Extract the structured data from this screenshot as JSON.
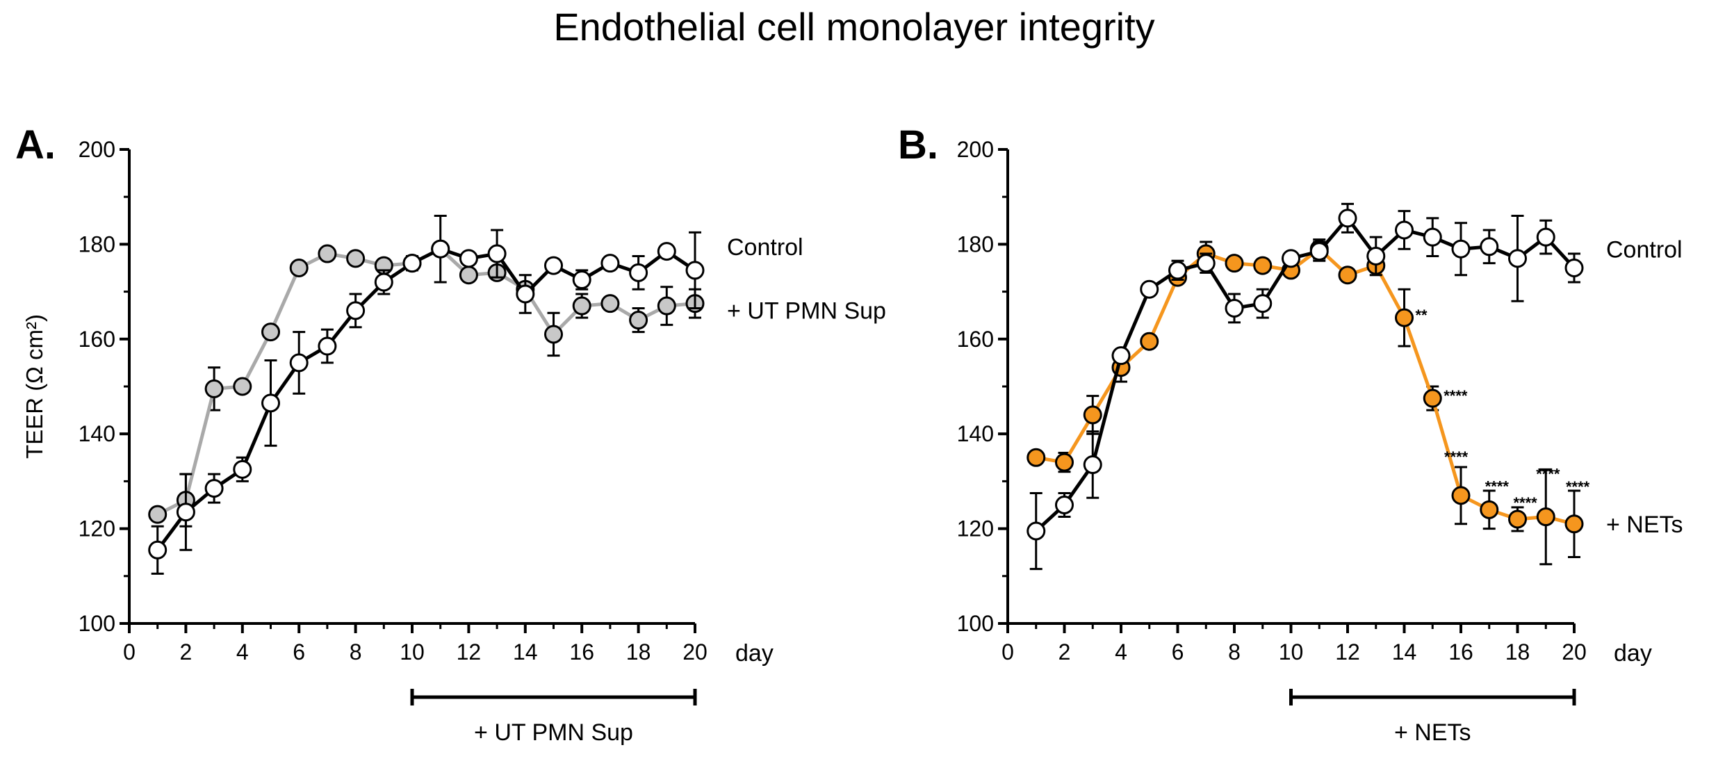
{
  "figure_title": "Endothelial cell monolayer integrity",
  "colors": {
    "control_fill": "#ffffff",
    "ut_pmn_fill": "#c8c8c8",
    "ut_pmn_line": "#a9a9a9",
    "nets_fill": "#f5961e",
    "nets_line": "#f5961e",
    "control_line": "#000000"
  },
  "chart_data": [
    {
      "panel": "A.",
      "type": "line",
      "ylabel": "TEER (Ω cm²)",
      "x_unit_label": "day",
      "xlim": [
        0,
        20
      ],
      "ylim": [
        100,
        200
      ],
      "xticks": [
        0,
        2,
        4,
        6,
        8,
        10,
        12,
        14,
        16,
        18,
        20
      ],
      "yticks": [
        100,
        120,
        140,
        160,
        180,
        200
      ],
      "grid": false,
      "treatment_bar": {
        "label": "+ UT PMN Sup",
        "from": 10,
        "to": 20
      },
      "series": [
        {
          "name": "+ UT PMN Sup",
          "style": "gray",
          "x": [
            1,
            2,
            3,
            4,
            5,
            6,
            7,
            8,
            9,
            10,
            11,
            12,
            13,
            14,
            15,
            16,
            17,
            18,
            19,
            20
          ],
          "y": [
            123,
            126,
            149.5,
            150,
            161.5,
            175,
            178,
            177,
            175.5,
            176,
            179,
            173.5,
            174,
            170.5,
            161,
            167,
            167.5,
            164,
            167,
            167.5
          ],
          "err": [
            0,
            5.5,
            4.5,
            0,
            0,
            0,
            0,
            0,
            0,
            0,
            0,
            0,
            0,
            0,
            4.5,
            2.5,
            0,
            2.5,
            4,
            3
          ]
        },
        {
          "name": "Control",
          "style": "black",
          "x": [
            1,
            2,
            3,
            4,
            5,
            6,
            7,
            8,
            9,
            10,
            11,
            12,
            13,
            14,
            15,
            16,
            17,
            18,
            19,
            20
          ],
          "y": [
            115.5,
            123.5,
            128.5,
            132.5,
            146.5,
            155,
            158.5,
            166,
            172,
            176,
            179,
            177,
            178,
            169.5,
            175.5,
            172.5,
            176,
            174,
            178.5,
            174.5
          ],
          "err": [
            5,
            8,
            3,
            2.5,
            9,
            6.5,
            3.5,
            3.5,
            2.5,
            1.5,
            7,
            0,
            5,
            4,
            0,
            2,
            0,
            3.5,
            0,
            8
          ]
        }
      ],
      "significance": []
    },
    {
      "panel": "B.",
      "type": "line",
      "ylabel": "",
      "x_unit_label": "day",
      "xlim": [
        0,
        20
      ],
      "ylim": [
        100,
        200
      ],
      "xticks": [
        0,
        2,
        4,
        6,
        8,
        10,
        12,
        14,
        16,
        18,
        20
      ],
      "yticks": [
        100,
        120,
        140,
        160,
        180,
        200
      ],
      "grid": false,
      "treatment_bar": {
        "label": "+ NETs",
        "from": 10,
        "to": 20
      },
      "series": [
        {
          "name": "+ NETs",
          "style": "orange",
          "x": [
            1,
            2,
            3,
            4,
            5,
            6,
            7,
            8,
            9,
            10,
            11,
            12,
            13,
            14,
            15,
            16,
            17,
            18,
            19,
            20
          ],
          "y": [
            135,
            134,
            144,
            154,
            159.5,
            173,
            178,
            176,
            175.5,
            174.5,
            179,
            173.5,
            175.5,
            164.5,
            147.5,
            127,
            124,
            122,
            122.5,
            121
          ],
          "err": [
            0,
            2,
            4,
            3,
            0,
            0,
            2.5,
            0,
            0,
            0,
            2,
            0,
            0,
            6,
            2.5,
            6,
            4,
            2.5,
            10,
            7
          ]
        },
        {
          "name": "Control",
          "style": "black",
          "x": [
            1,
            2,
            3,
            4,
            5,
            6,
            7,
            8,
            9,
            10,
            11,
            12,
            13,
            14,
            15,
            16,
            17,
            18,
            19,
            20
          ],
          "y": [
            119.5,
            125,
            133.5,
            156.5,
            170.5,
            174.5,
            176,
            166.5,
            167.5,
            177,
            178.5,
            185.5,
            177.5,
            183,
            181.5,
            179,
            179.5,
            177,
            181.5,
            175
          ],
          "err": [
            8,
            2.5,
            7,
            0,
            0,
            2,
            2,
            3,
            3,
            0,
            2,
            3,
            4,
            4,
            4,
            5.5,
            3.5,
            9,
            3.5,
            3
          ]
        }
      ],
      "significance": [
        {
          "x": 14,
          "y": 164.5,
          "label": "**"
        },
        {
          "x": 15,
          "y": 147.5,
          "label": "****"
        },
        {
          "x": 16,
          "y": 127,
          "label": "****"
        },
        {
          "x": 17,
          "y": 124,
          "label": "****"
        },
        {
          "x": 18,
          "y": 122,
          "label": "****"
        },
        {
          "x": 19,
          "y": 122.5,
          "label": "****"
        },
        {
          "x": 20,
          "y": 121,
          "label": "****"
        }
      ]
    }
  ]
}
